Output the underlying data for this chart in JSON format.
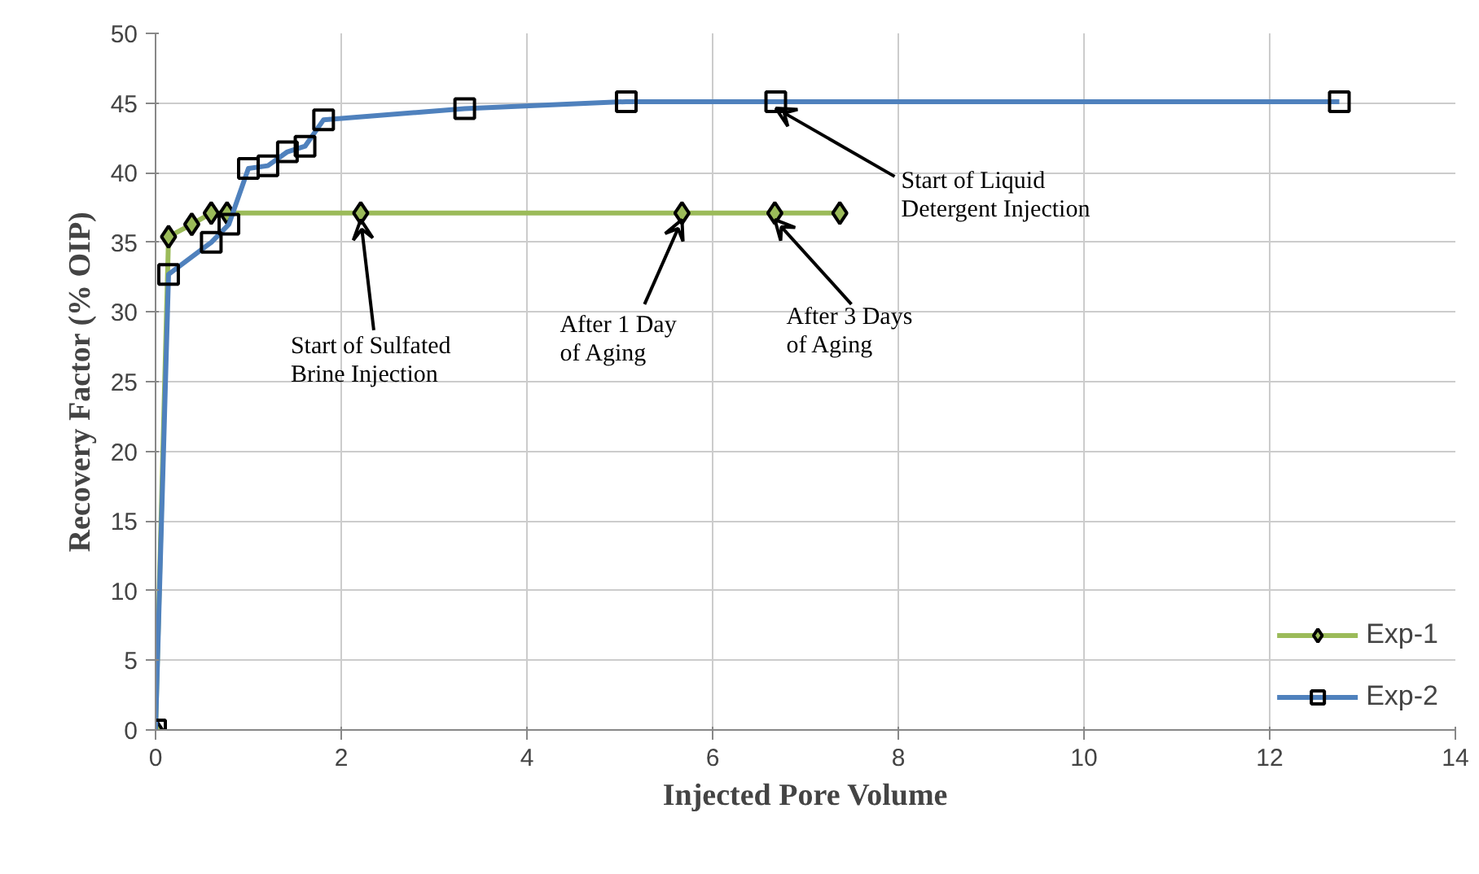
{
  "chart_data": {
    "type": "line",
    "xlabel": "Injected Pore Volume",
    "ylabel": "Recovery Factor (% OIP)",
    "xlim": [
      0,
      14
    ],
    "xticks": [
      0,
      2,
      4,
      6,
      8,
      10,
      12,
      14
    ],
    "ylim": [
      0,
      50
    ],
    "yticks": [
      0,
      5,
      10,
      15,
      20,
      25,
      30,
      35,
      40,
      45,
      50
    ],
    "grid": true,
    "legend": "bottom right",
    "line_style": "solid",
    "series": [
      {
        "name": "Exp-1",
        "color": "#9bbb59",
        "marker": "diamond",
        "x": [
          0,
          0.14,
          0.39,
          0.6,
          0.77,
          2.21,
          5.67,
          6.67,
          7.37
        ],
        "values": [
          0,
          35.4,
          36.3,
          37.1,
          37.1,
          37.1,
          37.1,
          37.1,
          37.1
        ]
      },
      {
        "name": "Exp-2",
        "color": "#4f81bd",
        "marker": "square",
        "x": [
          0,
          0.14,
          0.6,
          0.79,
          1.0,
          1.21,
          1.42,
          1.61,
          1.81,
          3.33,
          5.07,
          6.68,
          12.75
        ],
        "values": [
          0,
          32.7,
          35.0,
          36.3,
          40.3,
          40.5,
          41.5,
          41.9,
          43.8,
          44.6,
          45.1,
          45.1,
          45.1
        ]
      }
    ],
    "annotations": [
      {
        "text": "Start of  Sulfated\nBrine Injection",
        "x": 2.21,
        "y": 37.1
      },
      {
        "text": "After 1 Day\nof Aging",
        "x": 5.67,
        "y": 37.1
      },
      {
        "text": "After 3 Days\nof Aging",
        "x": 6.67,
        "y": 37.1
      },
      {
        "text": "Start of  Liquid\nDetergent Injection",
        "x": 6.68,
        "y": 45.1
      }
    ]
  }
}
